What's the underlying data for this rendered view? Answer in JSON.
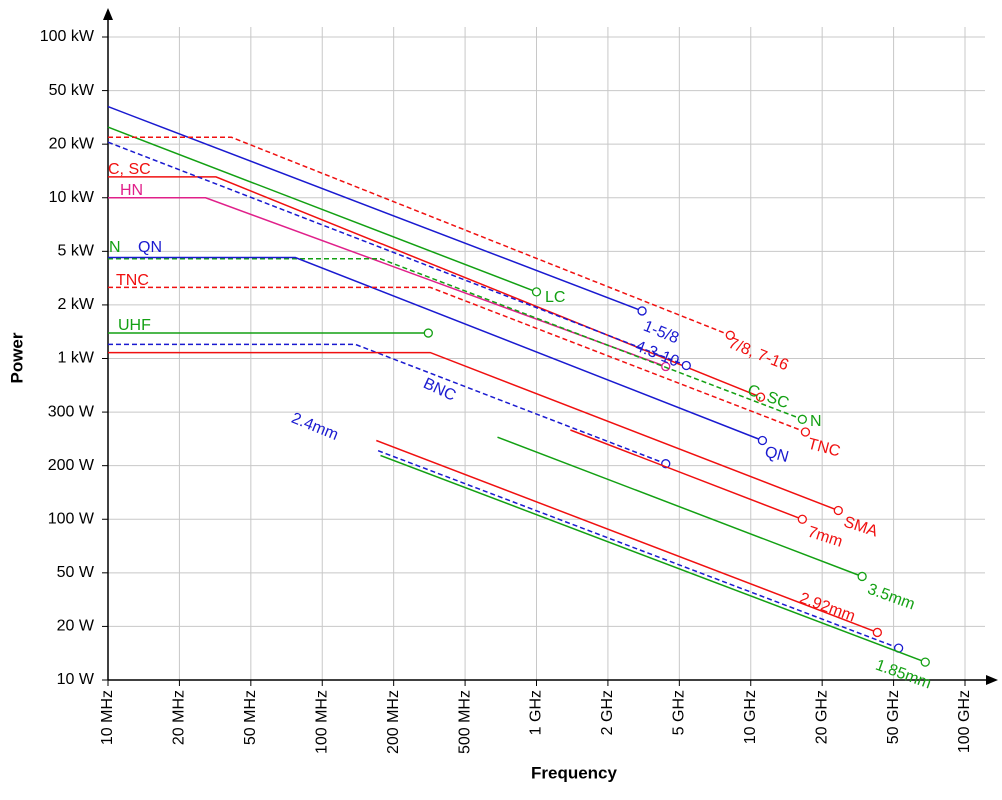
{
  "chart_data": {
    "type": "line",
    "xlabel": "Frequency",
    "ylabel": "Power",
    "xscale": "log",
    "yscale": "log",
    "grid": true,
    "xlim": [
      10,
      100000
    ],
    "ylim": [
      10,
      100000
    ],
    "xticks": [
      {
        "value": 10,
        "label": "10 MHz"
      },
      {
        "value": 20,
        "label": "20 MHz"
      },
      {
        "value": 50,
        "label": "50 MHz"
      },
      {
        "value": 100,
        "label": "100 MHz"
      },
      {
        "value": 200,
        "label": "200 MHz"
      },
      {
        "value": 500,
        "label": "500 MHz"
      },
      {
        "value": 1000,
        "label": "1 GHz"
      },
      {
        "value": 2000,
        "label": "2 GHz"
      },
      {
        "value": 5000,
        "label": "5 GHz"
      },
      {
        "value": 10000,
        "label": "10 GHz"
      },
      {
        "value": 20000,
        "label": "20 GHz"
      },
      {
        "value": 50000,
        "label": "50 GHz"
      },
      {
        "value": 100000,
        "label": "100 GHz"
      }
    ],
    "yticks": [
      {
        "value": 10,
        "label": "10 W"
      },
      {
        "value": 20,
        "label": "20 W"
      },
      {
        "value": 50,
        "label": "50 W"
      },
      {
        "value": 100,
        "label": "100 W"
      },
      {
        "value": 200,
        "label": "200 W"
      },
      {
        "value": 300,
        "label": "300 W"
      },
      {
        "value": 1000,
        "label": "1 kW"
      },
      {
        "value": 2000,
        "label": "2 kW"
      },
      {
        "value": 5000,
        "label": "5 kW"
      },
      {
        "value": 10000,
        "label": "10 kW"
      },
      {
        "value": 20000,
        "label": "20 kW"
      },
      {
        "value": 50000,
        "label": "50 kW"
      },
      {
        "value": 100000,
        "label": "100 kW"
      }
    ],
    "series": [
      {
        "name": "1-5/8",
        "color": "#1a1ad0",
        "dash": false,
        "x": [
          10,
          3100
        ],
        "y": [
          38000,
          1850
        ]
      },
      {
        "name": "LC",
        "color": "#13a013",
        "dash": false,
        "x": [
          10,
          1000
        ],
        "y": [
          26800,
          2500
        ]
      },
      {
        "name": "7/8, 7-16",
        "color": "#f01010",
        "dash": true,
        "x": [
          10,
          39,
          8200
        ],
        "y": [
          22500,
          22500,
          1350
        ]
      },
      {
        "name": "C, SC",
        "color": "#f01010",
        "dash": false,
        "x": [
          10,
          32,
          11000
        ],
        "y": [
          13100,
          13100,
          420
        ]
      },
      {
        "name": "HN",
        "color": "#e0208a",
        "dash": false,
        "x": [
          10,
          28,
          4200
        ],
        "y": [
          10000,
          10000,
          835
        ]
      },
      {
        "name": "4.3-10",
        "color": "#1a1ad0",
        "dash": true,
        "x": [
          10,
          5350
        ],
        "y": [
          20700,
          855
        ]
      },
      {
        "name": "N",
        "color": "#13a013",
        "dash": true,
        "x": [
          10,
          176,
          16500
        ],
        "y": [
          4400,
          4400,
          284
        ]
      },
      {
        "name": "QN",
        "color": "#1a1ad0",
        "dash": false,
        "x": [
          10,
          77,
          11200
        ],
        "y": [
          4500,
          4500,
          242
        ]
      },
      {
        "name": "TNC",
        "color": "#f01010",
        "dash": true,
        "x": [
          10,
          320,
          17000
        ],
        "y": [
          2700,
          2700,
          258
        ]
      },
      {
        "name": "UHF",
        "color": "#13a013",
        "dash": false,
        "x": [
          10,
          312
        ],
        "y": [
          1390,
          1390
        ]
      },
      {
        "name": "BNC",
        "color": "#1a1ad0",
        "dash": true,
        "x": [
          10,
          138,
          4200
        ],
        "y": [
          1200,
          1200,
          203
        ]
      },
      {
        "name": "SMA",
        "color": "#f01010",
        "dash": false,
        "x": [
          10,
          320,
          24600
        ],
        "y": [
          1080,
          1080,
          112
        ]
      },
      {
        "name": "7mm",
        "color": "#f01010",
        "dash": false,
        "x": [
          1390,
          16500
        ],
        "y": [
          262,
          100
        ]
      },
      {
        "name": "3.5mm",
        "color": "#13a013",
        "dash": false,
        "x": [
          685,
          33400
        ],
        "y": [
          248,
          47
        ]
      },
      {
        "name": "2.92mm",
        "color": "#f01010",
        "dash": false,
        "x": [
          169,
          40600
        ],
        "y": [
          242,
          18.5
        ]
      },
      {
        "name": "2.4mm",
        "color": "#1a1ad0",
        "dash": true,
        "x": [
          172,
          52500
        ],
        "y": [
          224,
          15.1
        ]
      },
      {
        "name": "1.85mm",
        "color": "#13a013",
        "dash": false,
        "x": [
          176,
          68000
        ],
        "y": [
          216,
          12.6
        ]
      }
    ]
  }
}
